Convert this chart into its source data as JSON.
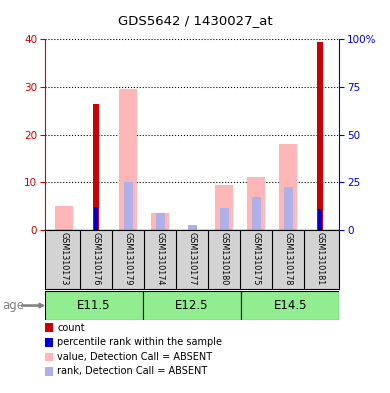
{
  "title": "GDS5642 / 1430027_at",
  "samples": [
    "GSM1310173",
    "GSM1310176",
    "GSM1310179",
    "GSM1310174",
    "GSM1310177",
    "GSM1310180",
    "GSM1310175",
    "GSM1310178",
    "GSM1310181"
  ],
  "count_values": [
    0,
    26.5,
    0,
    0,
    0,
    0,
    0,
    0,
    39.5
  ],
  "percentile_values": [
    0,
    12,
    0,
    0,
    0,
    0,
    0,
    0,
    11
  ],
  "absent_value": [
    5,
    0,
    29.5,
    3.5,
    0,
    9.5,
    11,
    18,
    0
  ],
  "absent_rank": [
    0,
    0,
    10,
    3.5,
    1,
    4.5,
    7,
    9,
    0
  ],
  "group_labels": [
    "E11.5",
    "E12.5",
    "E14.5"
  ],
  "group_ranges": [
    [
      0,
      3
    ],
    [
      3,
      6
    ],
    [
      6,
      9
    ]
  ],
  "ylim_left": [
    0,
    40
  ],
  "ylim_right": [
    0,
    100
  ],
  "yticks_left": [
    0,
    10,
    20,
    30,
    40
  ],
  "yticks_right": [
    0,
    25,
    50,
    75,
    100
  ],
  "yticklabels_right": [
    "0",
    "25",
    "50",
    "75",
    "100%"
  ],
  "left_axis_color": "#cc0000",
  "right_axis_color": "#0000cc",
  "bg_color": "#ffffff",
  "label_area_color": "#d3d3d3",
  "age_row_color": "#90EE90",
  "count_color": "#cc0000",
  "percentile_color": "#0000cc",
  "absent_val_color": "#ffb6b6",
  "absent_rank_color": "#b0b0e8",
  "legend_items": [
    {
      "label": "count",
      "color": "#cc0000"
    },
    {
      "label": "percentile rank within the sample",
      "color": "#0000cc"
    },
    {
      "label": "value, Detection Call = ABSENT",
      "color": "#ffb6b6"
    },
    {
      "label": "rank, Detection Call = ABSENT",
      "color": "#b0b0e8"
    }
  ]
}
